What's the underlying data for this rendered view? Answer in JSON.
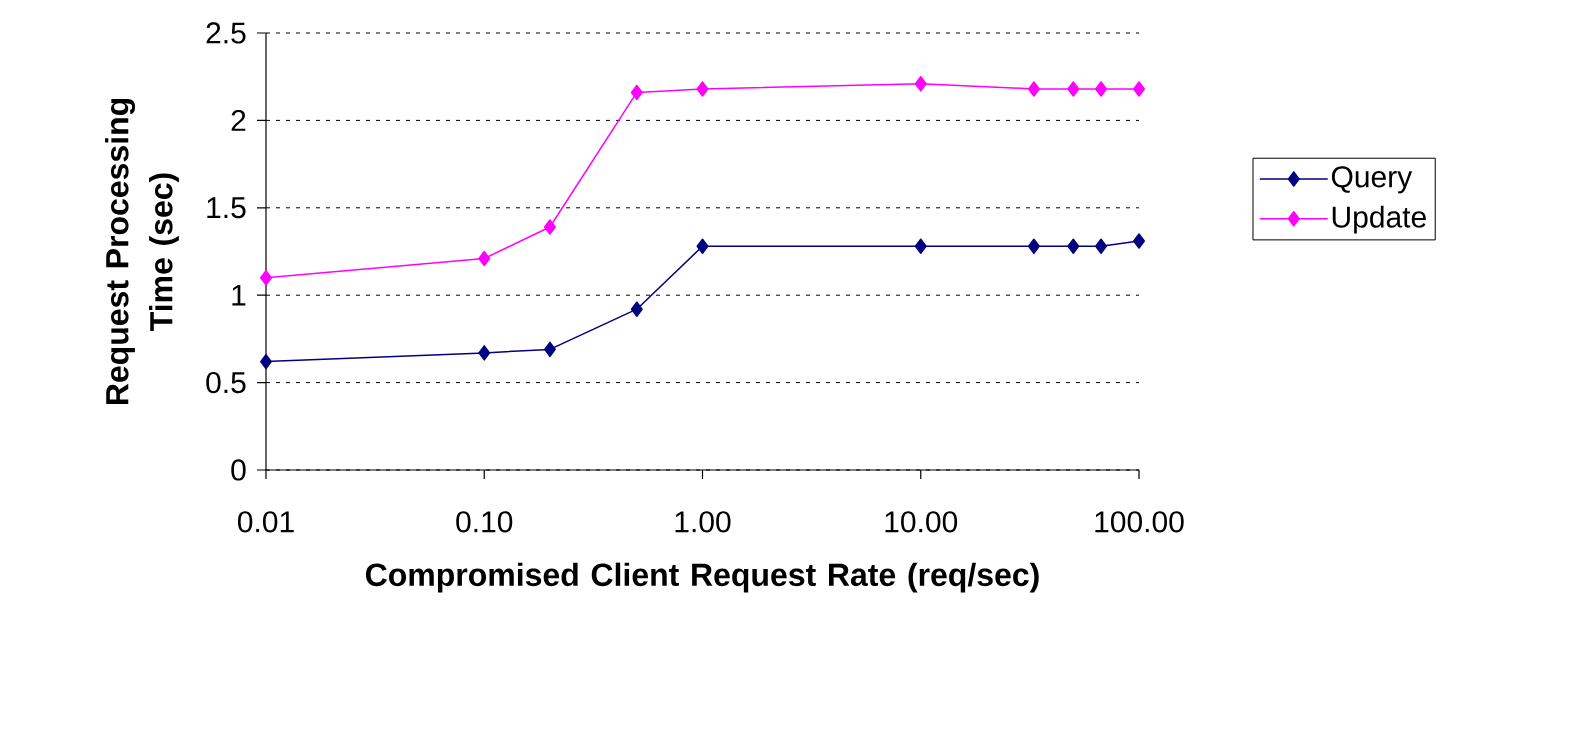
{
  "chart_data": {
    "type": "line",
    "xlabel": "Compromised Client Request Rate (req/sec)",
    "ylabel": "Request Processing Time (sec)",
    "x": [
      0.01,
      0.1,
      0.2,
      0.5,
      1,
      10,
      33,
      50,
      67,
      100
    ],
    "series": [
      {
        "name": "Query",
        "color": "#000080",
        "values": [
          0.62,
          0.67,
          0.69,
          0.92,
          1.28,
          1.28,
          1.28,
          1.28,
          1.28,
          1.31
        ]
      },
      {
        "name": "Update",
        "color": "#ff00ff",
        "values": [
          1.1,
          1.21,
          1.39,
          2.16,
          2.18,
          2.21,
          2.18,
          2.18,
          2.18,
          2.18
        ]
      }
    ],
    "log": "x",
    "xlim": [
      0.01,
      100
    ],
    "xticks": [
      0.01,
      {
        "value": 0.1,
        "label": "0.10"
      },
      {
        "value": 1,
        "label": "1.00"
      },
      {
        "value": 10,
        "label": "10.00"
      },
      {
        "value": 100,
        "label": "100.00"
      }
    ],
    "ylim": [
      0,
      2.5
    ],
    "yticks": [
      0,
      0.5,
      1,
      1.5,
      2,
      2.5
    ],
    "grid": "y",
    "legend": "right",
    "marker": "diamond",
    "line_style": "solid"
  }
}
